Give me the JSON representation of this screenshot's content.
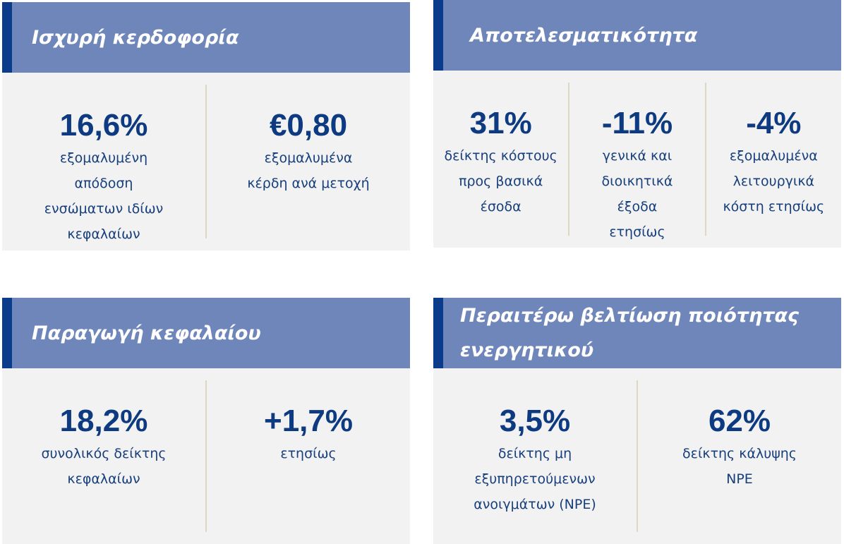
{
  "panels": [
    {
      "title": "Ισχυρή κερδοφορία",
      "metrics": [
        {
          "value": "16,6%",
          "label": "εξομαλυμένη\nαπόδοση\nενσώματων ιδίων\nκεφαλαίων"
        },
        {
          "value": "€0,80",
          "label": "εξομαλυμένα\nκέρδη ανά μετοχή"
        }
      ]
    },
    {
      "title": "Αποτελεσματικότητα",
      "metrics": [
        {
          "value": "31%",
          "label": "δείκτης κόστους\nπρος βασικά\nέσοδα"
        },
        {
          "value": "-11%",
          "label": "γενικά και\nδιοικητικά\nέξοδα\nετησίως"
        },
        {
          "value": "-4%",
          "label": "εξομαλυμένα\nλειτουργικά\nκόστη ετησίως"
        }
      ]
    },
    {
      "title": "Παραγωγή κεφαλαίου",
      "metrics": [
        {
          "value": "18,2%",
          "label": "συνολικός δείκτης\nκεφαλαίων"
        },
        {
          "value": "+1,7%",
          "label": "ετησίως"
        }
      ]
    },
    {
      "title": "Περαιτέρω βελτίωση ποιότητας\nενεργητικού",
      "metrics": [
        {
          "value": "3,5%",
          "label": "δείκτης μη\nεξυπηρετούμενων\nανοιγμάτων (NPE)"
        },
        {
          "value": "62%",
          "label": "δείκτης κάλυψης\nNPE"
        }
      ]
    }
  ]
}
